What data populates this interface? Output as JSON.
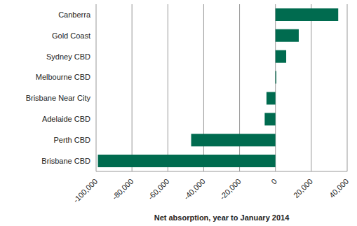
{
  "chart_data": {
    "type": "bar",
    "orientation": "horizontal",
    "x_label": "Net absorption, year to January 2014",
    "categories": [
      "Canberra",
      "Gold Coast",
      "Sydney CBD",
      "Melbourne CBD",
      "Brisbane Near City",
      "Adelaide CBD",
      "Perth CBD",
      "Brisbane CBD"
    ],
    "values": [
      35000,
      13000,
      6000,
      500,
      -5000,
      -6000,
      -47000,
      -99000
    ],
    "color": "#006b4f",
    "xlim": [
      -100000,
      40000
    ],
    "xticks": [
      {
        "value": -100000,
        "label": "-100,000"
      },
      {
        "value": -80000,
        "label": "-80,000"
      },
      {
        "value": -60000,
        "label": "-60,000"
      },
      {
        "value": -40000,
        "label": "-40,000"
      },
      {
        "value": -20000,
        "label": "-20,000"
      },
      0,
      {
        "value": 20000,
        "label": "20,000"
      },
      {
        "value": 40000,
        "label": "40,000"
      }
    ],
    "grid": true
  }
}
